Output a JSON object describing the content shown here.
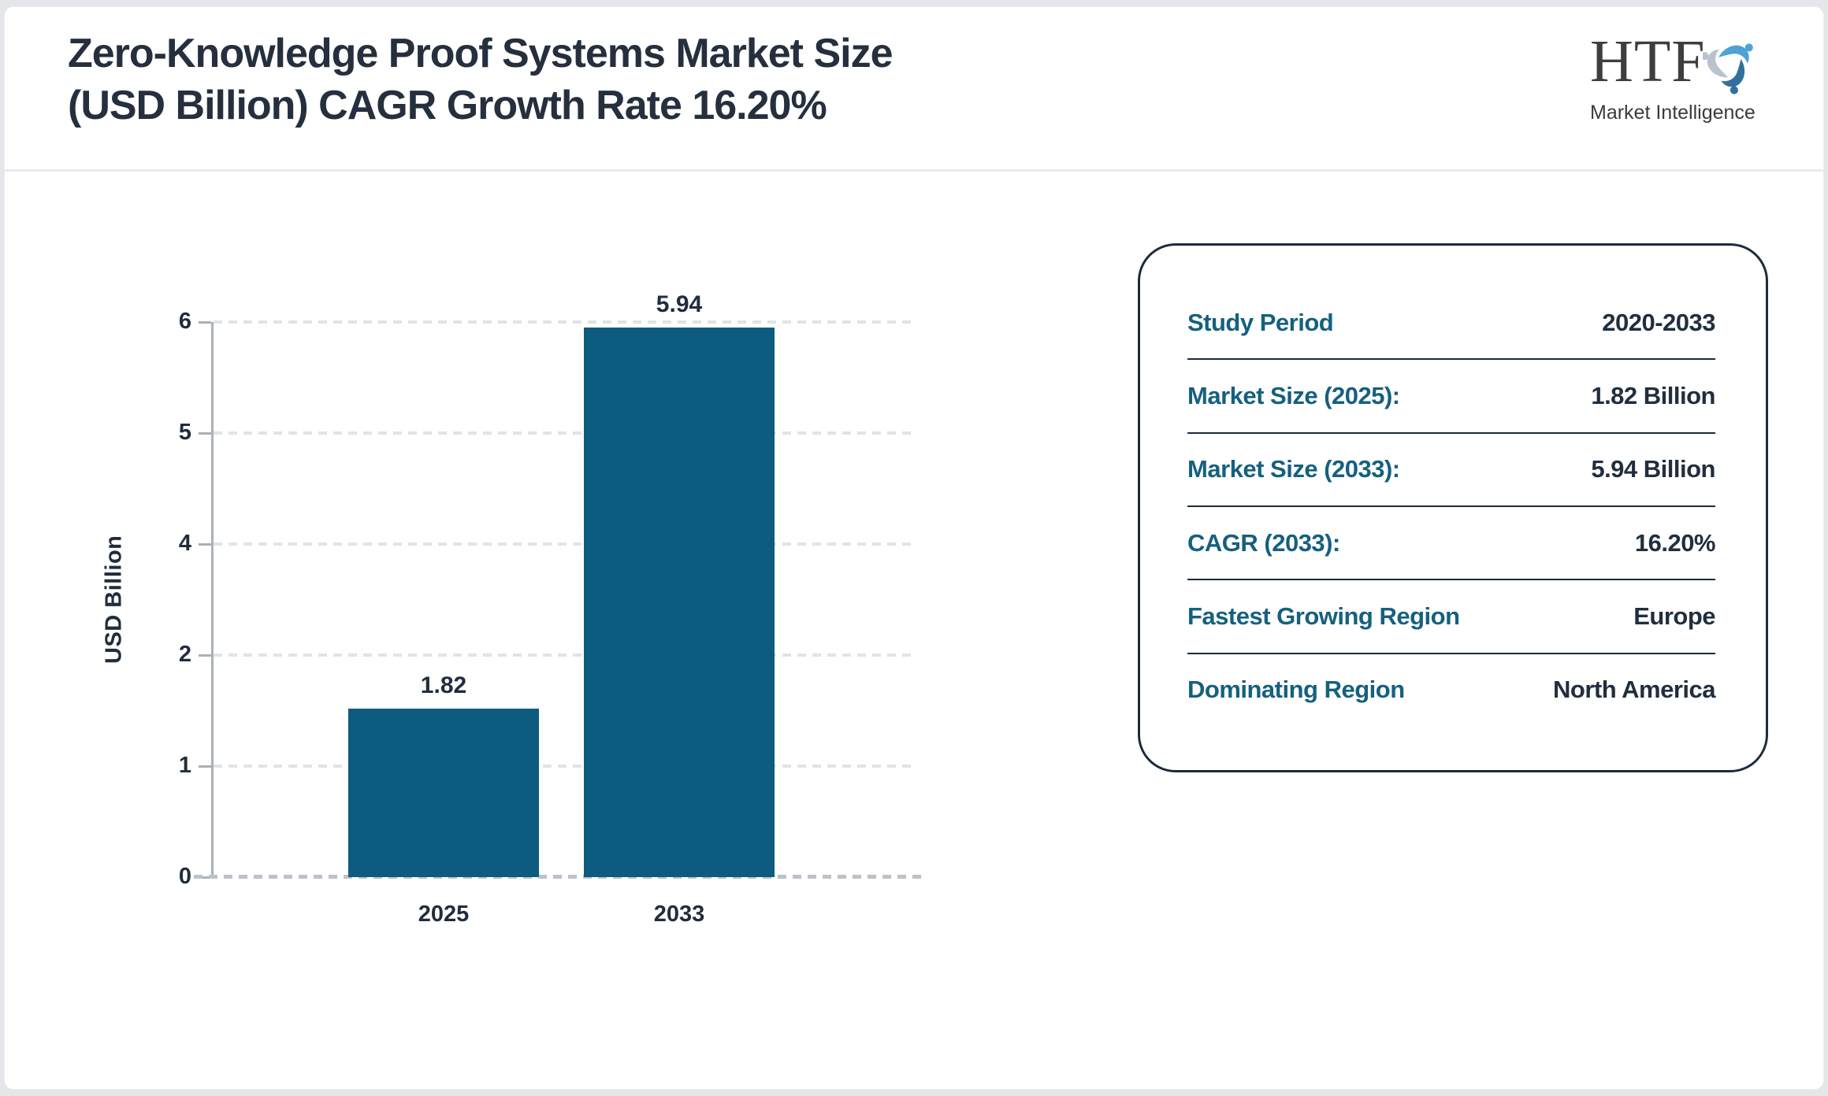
{
  "header": {
    "title_line1": "Zero-Knowledge Proof Systems Market Size",
    "title_line2": "(USD Billion) CAGR Growth Rate 16.20%",
    "logo": {
      "acronym": "HTF",
      "subtitle": "Market Intelligence",
      "icon": "logo-swirl-icon"
    }
  },
  "chart_data": {
    "type": "bar",
    "title": "Zero-Knowledge Proof Systems Market Size (USD Billion) CAGR Growth Rate 16.20%",
    "categories": [
      "2025",
      "2033"
    ],
    "values": [
      1.82,
      5.94
    ],
    "bar_labels": [
      "1.82",
      "5.94"
    ],
    "xlabel": "",
    "ylabel": "USD Billion",
    "ylim": [
      0,
      6
    ],
    "ytick_labels_top_to_bottom": [
      "6",
      "5",
      "4",
      "2",
      "1",
      "0"
    ],
    "grid": "horizontal-dashed",
    "legend": "none",
    "bar_color": "#0d5c80"
  },
  "info_panel": {
    "rows": [
      {
        "label": "Study Period",
        "value": "2020-2033"
      },
      {
        "label": "Market Size (2025):",
        "value": "1.82 Billion"
      },
      {
        "label": "Market Size (2033):",
        "value": "5.94 Billion"
      },
      {
        "label": "CAGR (2033):",
        "value": "16.20%"
      },
      {
        "label": "Fastest Growing Region",
        "value": "Europe"
      },
      {
        "label": "Dominating Region",
        "value": "North America"
      }
    ]
  },
  "colors": {
    "accent_teal": "#15607f",
    "navy_text": "#212e3f",
    "bar_fill": "#0d5c80",
    "axis_gray": "#aab1b8",
    "gridline_gray": "#e0e3e7"
  }
}
